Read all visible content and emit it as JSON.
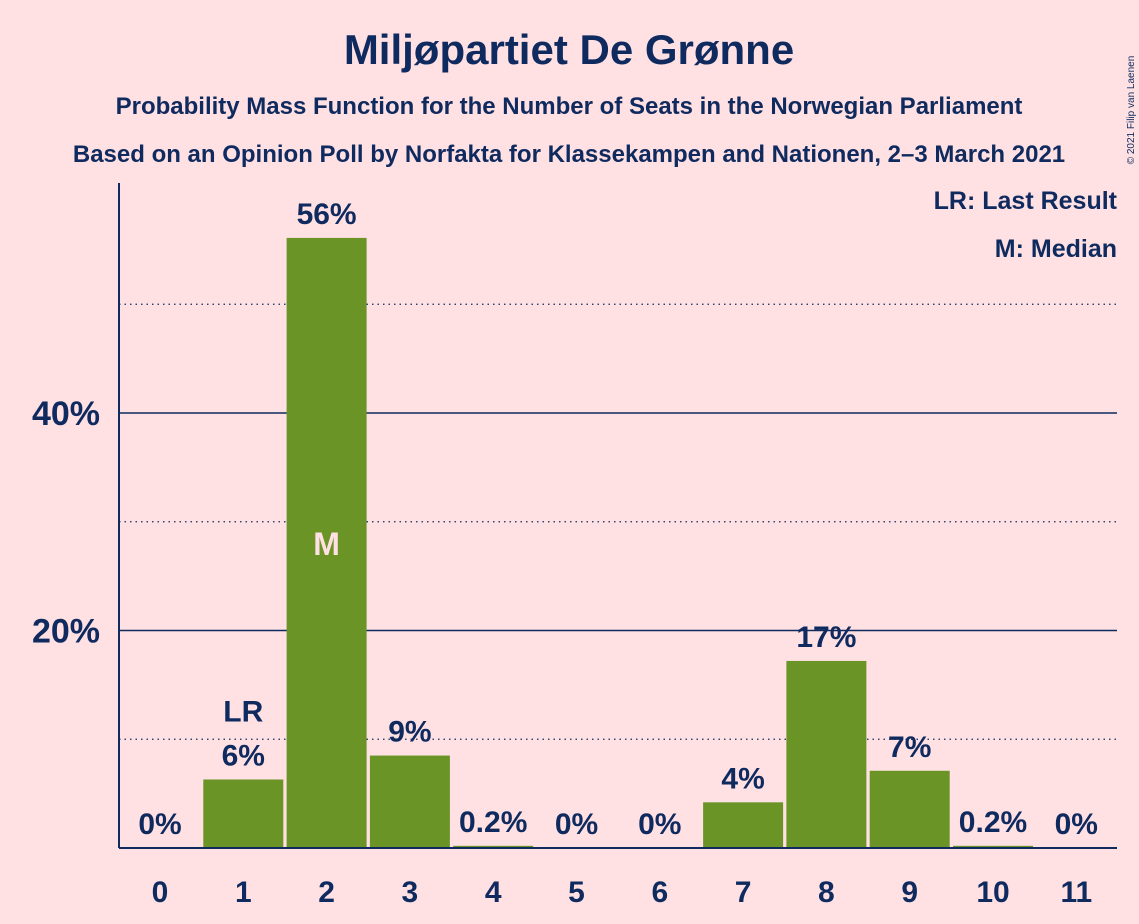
{
  "chart_data": {
    "type": "bar",
    "title": "Miljøpartiet De Grønne",
    "subtitle": "Probability Mass Function for the Number of Seats in the Norwegian Parliament",
    "subtitle2": "Based on an Opinion Poll by Norfakta for Klassekampen and Nationen, 2–3 March 2021",
    "copyright": "© 2021 Filip van Laenen",
    "categories": [
      "0",
      "1",
      "2",
      "3",
      "4",
      "5",
      "6",
      "7",
      "8",
      "9",
      "10",
      "11"
    ],
    "values": [
      0,
      6.3,
      56.1,
      8.5,
      0.2,
      0,
      0,
      4.2,
      17.2,
      7.1,
      0.2,
      0
    ],
    "data_labels": [
      "0%",
      "6%",
      "56%",
      "9%",
      "0.2%",
      "0%",
      "0%",
      "4%",
      "17%",
      "7%",
      "0.2%",
      "0%"
    ],
    "ylim": [
      0,
      60
    ],
    "y_major_ticks": [
      20,
      40
    ],
    "y_minor_ticks": [
      10,
      30,
      50
    ],
    "y_tick_labels": [
      "20%",
      "40%"
    ],
    "last_result_seat": "1",
    "median_seat": "2",
    "lr_marker": "LR",
    "median_marker": "M",
    "legend": {
      "position": "top-right",
      "items": [
        "LR: Last Result",
        "M: Median"
      ]
    },
    "colors": {
      "background": "#FFE0E3",
      "bar": "#6B9427",
      "text": "#0E2A5E",
      "median_label": "#FFE0E3"
    }
  }
}
